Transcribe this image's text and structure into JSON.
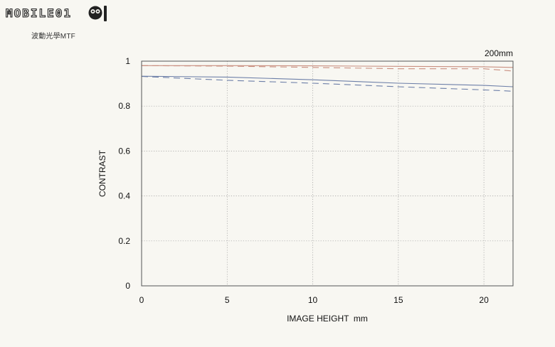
{
  "brand": {
    "logo_text": "MOBILE01"
  },
  "caption": "波動光學MTF",
  "colors": {
    "sagittal_10": "#c98f80",
    "sagittal_30": "#6d7fa8",
    "frame": "#555555",
    "background": "#f8f7f2"
  },
  "chart_data": {
    "type": "line",
    "title": "",
    "annotation": "200mm",
    "xlabel": "IMAGE HEIGHT  mm",
    "ylabel": "CONTRAST",
    "xlim": [
      0,
      21.7
    ],
    "ylim": [
      0,
      1
    ],
    "xticks": [
      0,
      5,
      10,
      15,
      20
    ],
    "yticks": [
      0,
      0.2,
      0.4,
      0.6,
      0.8,
      1
    ],
    "ytick_labels": [
      "0",
      "0.2",
      "0.4",
      "0.6",
      "0.8",
      "1"
    ],
    "grid": true,
    "series": [
      {
        "color": "#c98f80",
        "style": "solid",
        "x": [
          0,
          5,
          10,
          15,
          20,
          21.7
        ],
        "y": [
          0.98,
          0.98,
          0.979,
          0.977,
          0.975,
          0.972
        ]
      },
      {
        "color": "#c98f80",
        "style": "dashed",
        "x": [
          0,
          5,
          10,
          15,
          20,
          21.7
        ],
        "y": [
          0.98,
          0.978,
          0.972,
          0.966,
          0.966,
          0.956
        ]
      },
      {
        "color": "#6d7fa8",
        "style": "solid",
        "x": [
          0,
          5,
          10,
          15,
          20,
          21.7
        ],
        "y": [
          0.933,
          0.929,
          0.917,
          0.902,
          0.892,
          0.886
        ]
      },
      {
        "color": "#6d7fa8",
        "style": "dashed",
        "x": [
          0,
          5,
          10,
          15,
          20,
          21.7
        ],
        "y": [
          0.932,
          0.915,
          0.902,
          0.886,
          0.872,
          0.866
        ]
      }
    ]
  }
}
